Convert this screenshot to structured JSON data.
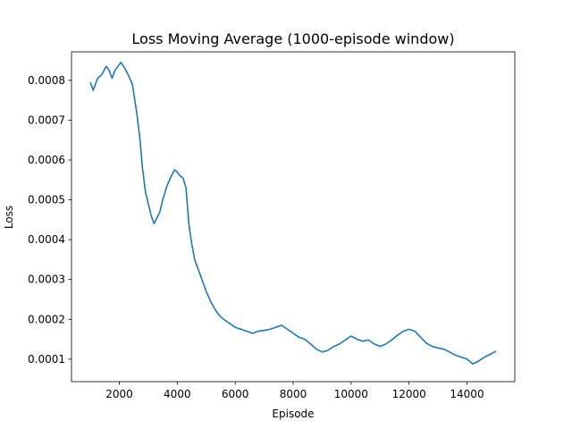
{
  "chart_data": {
    "type": "line",
    "title": "Loss Moving Average (1000-episode window)",
    "xlabel": "Episode",
    "ylabel": "Loss",
    "xlim": [
      350,
      15650
    ],
    "ylim": [
      4.35e-05,
      0.0008715
    ],
    "x_ticks": [
      2000,
      4000,
      6000,
      8000,
      10000,
      12000,
      14000
    ],
    "x_tick_labels": [
      "2000",
      "4000",
      "6000",
      "8000",
      "10000",
      "12000",
      "14000"
    ],
    "y_ticks": [
      0.0001,
      0.0002,
      0.0003,
      0.0004,
      0.0005,
      0.0006,
      0.0007,
      0.0008
    ],
    "y_tick_labels": [
      "0.0001",
      "0.0002",
      "0.0003",
      "0.0004",
      "0.0005",
      "0.0006",
      "0.0007",
      "0.0008"
    ],
    "grid": false,
    "series_color": "#1f77b4",
    "series": [
      {
        "x": [
          1000,
          1100,
          1250,
          1400,
          1550,
          1650,
          1750,
          1850,
          1950,
          2050,
          2150,
          2300,
          2450,
          2600,
          2700,
          2800,
          2900,
          3000,
          3100,
          3200,
          3300,
          3400,
          3500,
          3600,
          3700,
          3800,
          3900,
          4000,
          4100,
          4200,
          4300,
          4400,
          4500,
          4600,
          4700,
          4800,
          4900,
          5000,
          5150,
          5300,
          5450,
          5600,
          5800,
          6000,
          6200,
          6400,
          6600,
          6800,
          7000,
          7200,
          7400,
          7600,
          7800,
          8000,
          8200,
          8400,
          8600,
          8800,
          9000,
          9200,
          9400,
          9600,
          9800,
          10000,
          10200,
          10400,
          10600,
          10800,
          11000,
          11200,
          11400,
          11600,
          11800,
          12000,
          12200,
          12400,
          12600,
          12800,
          13000,
          13200,
          13400,
          13600,
          13800,
          14000,
          14200,
          14400,
          14600,
          14800,
          15000
        ],
        "y": [
          0.000795,
          0.000775,
          0.000805,
          0.000815,
          0.000835,
          0.000825,
          0.000805,
          0.000825,
          0.000835,
          0.000845,
          0.000835,
          0.000815,
          0.00079,
          0.00072,
          0.00066,
          0.00058,
          0.00052,
          0.00049,
          0.00046,
          0.00044,
          0.000455,
          0.00047,
          0.0005,
          0.000525,
          0.000545,
          0.00056,
          0.000575,
          0.00057,
          0.00056,
          0.000555,
          0.00053,
          0.00044,
          0.00039,
          0.00035,
          0.00033,
          0.00031,
          0.00029,
          0.00027,
          0.000245,
          0.000225,
          0.00021,
          0.0002,
          0.00019,
          0.00018,
          0.000175,
          0.00017,
          0.000165,
          0.00017,
          0.000172,
          0.000175,
          0.00018,
          0.000185,
          0.000175,
          0.000165,
          0.000155,
          0.00015,
          0.000138,
          0.000125,
          0.000118,
          0.000122,
          0.000132,
          0.000138,
          0.000148,
          0.000158,
          0.00015,
          0.000145,
          0.000148,
          0.000138,
          0.000132,
          0.000138,
          0.000148,
          0.00016,
          0.00017,
          0.000175,
          0.00017,
          0.000155,
          0.00014,
          0.000132,
          0.000128,
          0.000125,
          0.000118,
          0.00011,
          0.000105,
          0.0001,
          8.8e-05,
          9.5e-05,
          0.000105,
          0.000112,
          0.00012
        ]
      }
    ]
  }
}
